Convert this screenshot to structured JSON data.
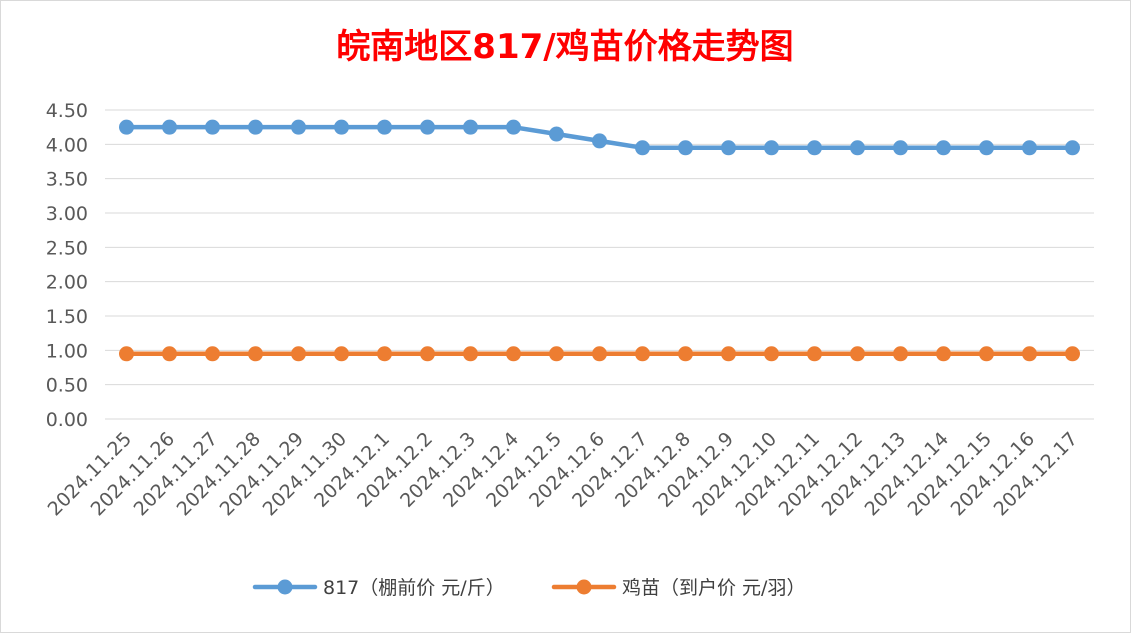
{
  "chart_data": {
    "type": "line",
    "title": "皖南地区817/鸡苗价格走势图",
    "xlabel": "",
    "ylabel": "",
    "ylim": [
      0,
      4.5
    ],
    "yticks": [
      "0.00",
      "0.50",
      "1.00",
      "1.50",
      "2.00",
      "2.50",
      "3.00",
      "3.50",
      "4.00",
      "4.50"
    ],
    "grid": true,
    "legend_position": "bottom",
    "categories": [
      "2024.11.25",
      "2024.11.26",
      "2024.11.27",
      "2024.11.28",
      "2024.11.29",
      "2024.11.30",
      "2024.12.1",
      "2024.12.2",
      "2024.12.3",
      "2024.12.4",
      "2024.12.5",
      "2024.12.6",
      "2024.12.7",
      "2024.12.8",
      "2024.12.9",
      "2024.12.10",
      "2024.12.11",
      "2024.12.12",
      "2024.12.13",
      "2024.12.14",
      "2024.12.15",
      "2024.12.16",
      "2024.12.17"
    ],
    "series": [
      {
        "name": "817（棚前价 元/斤）",
        "color": "#5b9bd5",
        "values": [
          4.25,
          4.25,
          4.25,
          4.25,
          4.25,
          4.25,
          4.25,
          4.25,
          4.25,
          4.25,
          4.15,
          4.05,
          3.95,
          3.95,
          3.95,
          3.95,
          3.95,
          3.95,
          3.95,
          3.95,
          3.95,
          3.95,
          3.95
        ]
      },
      {
        "name": "鸡苗（到户价 元/羽）",
        "color": "#ed7d31",
        "values": [
          0.95,
          0.95,
          0.95,
          0.95,
          0.95,
          0.95,
          0.95,
          0.95,
          0.95,
          0.95,
          0.95,
          0.95,
          0.95,
          0.95,
          0.95,
          0.95,
          0.95,
          0.95,
          0.95,
          0.95,
          0.95,
          0.95,
          0.95
        ]
      }
    ]
  }
}
